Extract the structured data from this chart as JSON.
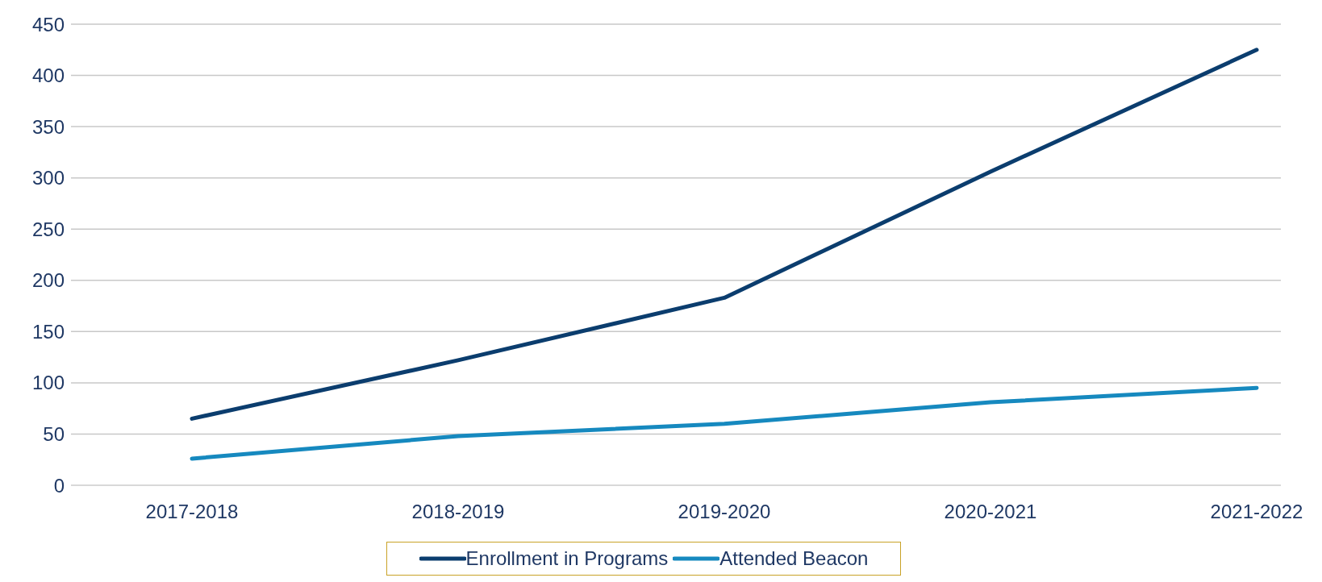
{
  "chart_data": {
    "type": "line",
    "categories": [
      "2017-2018",
      "2018-2019",
      "2019-2020",
      "2020-2021",
      "2021-2022"
    ],
    "series": [
      {
        "name": "Enrollment in Programs",
        "color": "#0b3d6e",
        "values": [
          65,
          122,
          183,
          306,
          425
        ]
      },
      {
        "name": "Attended Beacon",
        "color": "#1689bf",
        "values": [
          26,
          48,
          60,
          81,
          95
        ]
      }
    ],
    "ylim": [
      0,
      450
    ],
    "yticks": [
      0,
      50,
      100,
      150,
      200,
      250,
      300,
      350,
      400,
      450
    ],
    "grid": "y",
    "legend": "bottom",
    "marker": "none",
    "line_style": "solid"
  }
}
